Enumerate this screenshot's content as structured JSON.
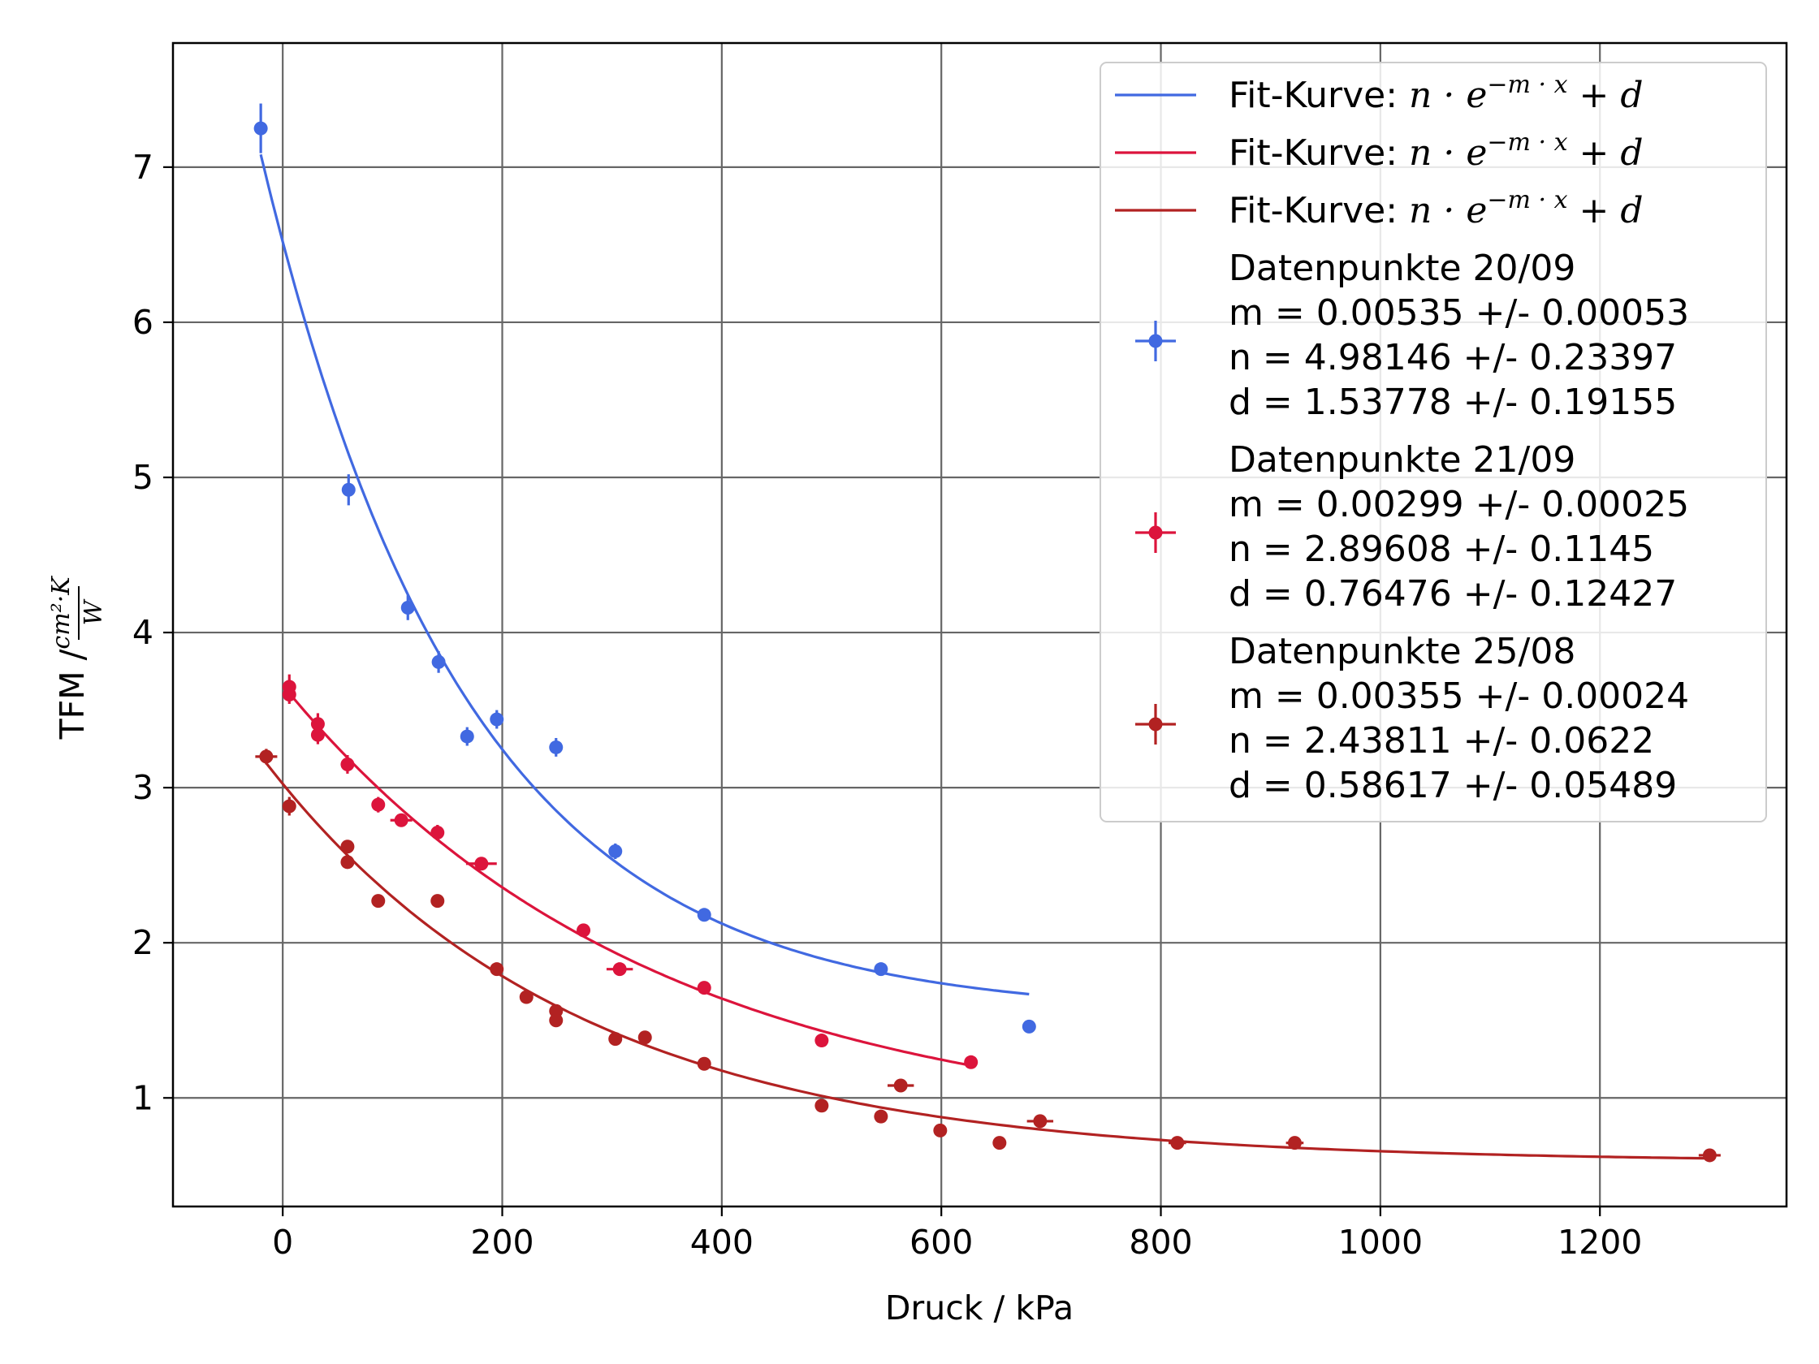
{
  "chart_data": {
    "type": "scatter",
    "xlabel": "Druck / kPa",
    "ylabel_prefix": "TFM / ",
    "ylabel_fraction": {
      "numerator": "cm²·K",
      "denominator": "W"
    },
    "xlim": [
      -100,
      1370
    ],
    "ylim": [
      0.3,
      7.8
    ],
    "xticks": [
      0,
      200,
      400,
      600,
      800,
      1000,
      1200
    ],
    "yticks": [
      1,
      2,
      3,
      4,
      5,
      6,
      7
    ],
    "grid": true,
    "legend_position": "top-right",
    "fit_model": "n · e^(−m·x) + d",
    "fits": [
      {
        "label_prefix": "Fit-Kurve: ",
        "color": "#4169e1",
        "n": 4.98146,
        "m": 0.00535,
        "d": 1.53778,
        "x_range": [
          -20,
          680
        ]
      },
      {
        "label_prefix": "Fit-Kurve: ",
        "color": "#dc143c",
        "n": 2.89608,
        "m": 0.00299,
        "d": 0.76476,
        "x_range": [
          5,
          625
        ]
      },
      {
        "label_prefix": "Fit-Kurve: ",
        "color": "#b22222",
        "n": 2.43811,
        "m": 0.00355,
        "d": 0.58617,
        "x_range": [
          -15,
          1300
        ]
      }
    ],
    "series": [
      {
        "name": "Datenpunkte 20/09",
        "legend_lines": [
          "Datenpunkte 20/09",
          "m = 0.00535 +/- 0.00053",
          "n = 4.98146 +/- 0.23397",
          "d = 1.53778 +/- 0.19155"
        ],
        "color": "#4169e1",
        "points": [
          {
            "x": -20,
            "y": 7.25,
            "yerr": 0.16,
            "xerr": 0
          },
          {
            "x": 60,
            "y": 4.92,
            "yerr": 0.1,
            "xerr": 0
          },
          {
            "x": 114,
            "y": 4.16,
            "yerr": 0.08,
            "xerr": 0
          },
          {
            "x": 142,
            "y": 3.81,
            "yerr": 0.07,
            "xerr": 0
          },
          {
            "x": 168,
            "y": 3.33,
            "yerr": 0.06,
            "xerr": 0
          },
          {
            "x": 195,
            "y": 3.44,
            "yerr": 0.06,
            "xerr": 0
          },
          {
            "x": 249,
            "y": 3.26,
            "yerr": 0.06,
            "xerr": 0
          },
          {
            "x": 303,
            "y": 2.59,
            "yerr": 0.05,
            "xerr": 0
          },
          {
            "x": 384,
            "y": 2.18,
            "yerr": 0.03,
            "xerr": 0
          },
          {
            "x": 545,
            "y": 1.83,
            "yerr": 0.02,
            "xerr": 0
          },
          {
            "x": 680,
            "y": 1.46,
            "yerr": 0.02,
            "xerr": 0
          }
        ]
      },
      {
        "name": "Datenpunkte 21/09",
        "legend_lines": [
          "Datenpunkte 21/09",
          "m = 0.00299 +/- 0.00025",
          "n = 2.89608 +/- 0.1145",
          "d = 0.76476 +/- 0.12427"
        ],
        "color": "#dc143c",
        "points": [
          {
            "x": 6,
            "y": 3.65,
            "yerr": 0.08,
            "xerr": 0
          },
          {
            "x": 6,
            "y": 3.6,
            "yerr": 0.06,
            "xerr": 0
          },
          {
            "x": 32,
            "y": 3.41,
            "yerr": 0.07,
            "xerr": 0
          },
          {
            "x": 32,
            "y": 3.34,
            "yerr": 0.06,
            "xerr": 0
          },
          {
            "x": 59,
            "y": 3.15,
            "yerr": 0.06,
            "xerr": 6
          },
          {
            "x": 87,
            "y": 2.89,
            "yerr": 0.05,
            "xerr": 6
          },
          {
            "x": 108,
            "y": 2.79,
            "yerr": 0.04,
            "xerr": 10
          },
          {
            "x": 141,
            "y": 2.71,
            "yerr": 0.05,
            "xerr": 6
          },
          {
            "x": 181,
            "y": 2.51,
            "yerr": 0.03,
            "xerr": 14
          },
          {
            "x": 274,
            "y": 2.08,
            "yerr": 0.02,
            "xerr": 0
          },
          {
            "x": 307,
            "y": 1.83,
            "yerr": 0.02,
            "xerr": 12
          },
          {
            "x": 384,
            "y": 1.71,
            "yerr": 0.02,
            "xerr": 0
          },
          {
            "x": 491,
            "y": 1.37,
            "yerr": 0.02,
            "xerr": 0
          },
          {
            "x": 627,
            "y": 1.23,
            "yerr": 0.02,
            "xerr": 0
          }
        ]
      },
      {
        "name": "Datenpunkte 25/08",
        "legend_lines": [
          "Datenpunkte 25/08",
          "m = 0.00355 +/- 0.00024",
          "n = 2.43811 +/- 0.0622",
          "d = 0.58617 +/- 0.05489"
        ],
        "color": "#b22222",
        "points": [
          {
            "x": -15,
            "y": 3.2,
            "yerr": 0.05,
            "xerr": 10
          },
          {
            "x": 6,
            "y": 2.88,
            "yerr": 0.06,
            "xerr": 0
          },
          {
            "x": 59,
            "y": 2.62,
            "yerr": 0.04,
            "xerr": 0
          },
          {
            "x": 59,
            "y": 2.52,
            "yerr": 0.04,
            "xerr": 0
          },
          {
            "x": 87,
            "y": 2.27,
            "yerr": 0.02,
            "xerr": 0
          },
          {
            "x": 141,
            "y": 2.27,
            "yerr": 0.02,
            "xerr": 0
          },
          {
            "x": 195,
            "y": 1.83,
            "yerr": 0.02,
            "xerr": 0
          },
          {
            "x": 222,
            "y": 1.65,
            "yerr": 0.02,
            "xerr": 0
          },
          {
            "x": 249,
            "y": 1.56,
            "yerr": 0.02,
            "xerr": 0
          },
          {
            "x": 249,
            "y": 1.5,
            "yerr": 0.02,
            "xerr": 0
          },
          {
            "x": 303,
            "y": 1.38,
            "yerr": 0.02,
            "xerr": 0
          },
          {
            "x": 330,
            "y": 1.39,
            "yerr": 0.02,
            "xerr": 0
          },
          {
            "x": 384,
            "y": 1.22,
            "yerr": 0.02,
            "xerr": 0
          },
          {
            "x": 491,
            "y": 0.95,
            "yerr": 0.02,
            "xerr": 0
          },
          {
            "x": 545,
            "y": 0.88,
            "yerr": 0.02,
            "xerr": 0
          },
          {
            "x": 563,
            "y": 1.08,
            "yerr": 0.02,
            "xerr": 12
          },
          {
            "x": 599,
            "y": 0.79,
            "yerr": 0.02,
            "xerr": 0
          },
          {
            "x": 653,
            "y": 0.71,
            "yerr": 0.02,
            "xerr": 0
          },
          {
            "x": 690,
            "y": 0.85,
            "yerr": 0.02,
            "xerr": 12
          },
          {
            "x": 815,
            "y": 0.71,
            "yerr": 0.02,
            "xerr": 8
          },
          {
            "x": 922,
            "y": 0.71,
            "yerr": 0.02,
            "xerr": 8
          },
          {
            "x": 1300,
            "y": 0.63,
            "yerr": 0.02,
            "xerr": 10
          }
        ]
      }
    ]
  }
}
